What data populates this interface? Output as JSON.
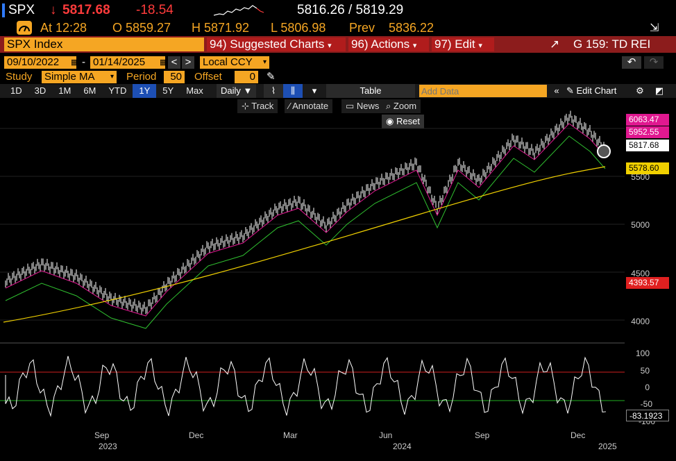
{
  "quote": {
    "ticker": "SPX",
    "arrow": "↓",
    "last": "5817.68",
    "change": "-18.54",
    "bid_ask": "5816.26 / 5819.29",
    "time": "At 12:28",
    "open": "O 5859.27",
    "high": "H 5871.92",
    "low": "L 5806.98",
    "prev_label": "Prev",
    "prev": "5836.22"
  },
  "menubar": {
    "security": "SPX Index",
    "suggested": "94) Suggested Charts",
    "actions": "96) Actions",
    "edit": "97) Edit",
    "group": "G 159: TD REI"
  },
  "range": {
    "start": "09/10/2022",
    "dash": "-",
    "end": "01/14/2025",
    "prev_btn": "<",
    "next_btn": ">",
    "currency": "Local CCY"
  },
  "study": {
    "label": "Study",
    "type": "Simple MA",
    "period_label": "Period",
    "period": "50",
    "offset_label": "Offset",
    "offset": "0"
  },
  "toolbar": {
    "tabs": [
      "1D",
      "3D",
      "1M",
      "6M",
      "YTD",
      "1Y",
      "5Y",
      "Max"
    ],
    "selected": "1Y",
    "freq": "Daily",
    "table": "Table",
    "add_data_placeholder": "Add Data",
    "edit_chart": "Edit Chart"
  },
  "chart_tools": {
    "track": "Track",
    "annotate": "Annotate",
    "news": "News",
    "zoom": "Zoom",
    "reset": "Reset"
  },
  "price_tags": {
    "upper": "6063.47",
    "upper_color": "#e01890",
    "ma20": "5952.55",
    "ma20_color": "#e01890",
    "last": "5817.68",
    "last_color": "#ffffff",
    "ma200": "5578.60",
    "ma200_color": "#f0d000",
    "lower": "4393.57",
    "lower_color": "#e02020",
    "osc": "-83.1923"
  },
  "price_axis": [
    "5500",
    "5000",
    "4500",
    "4000"
  ],
  "osc_axis": [
    "100",
    "50",
    "0",
    "-50",
    "-100"
  ],
  "x_axis": {
    "months": [
      "Sep",
      "Dec",
      "Mar",
      "Jun",
      "Sep",
      "Dec"
    ],
    "years": [
      "2023",
      "2024",
      "2025"
    ]
  },
  "colors": {
    "bg": "#000000",
    "accent_orange": "#f5a623",
    "bar_red": "#8c1c1c",
    "selected_blue": "#1d4fb4"
  }
}
